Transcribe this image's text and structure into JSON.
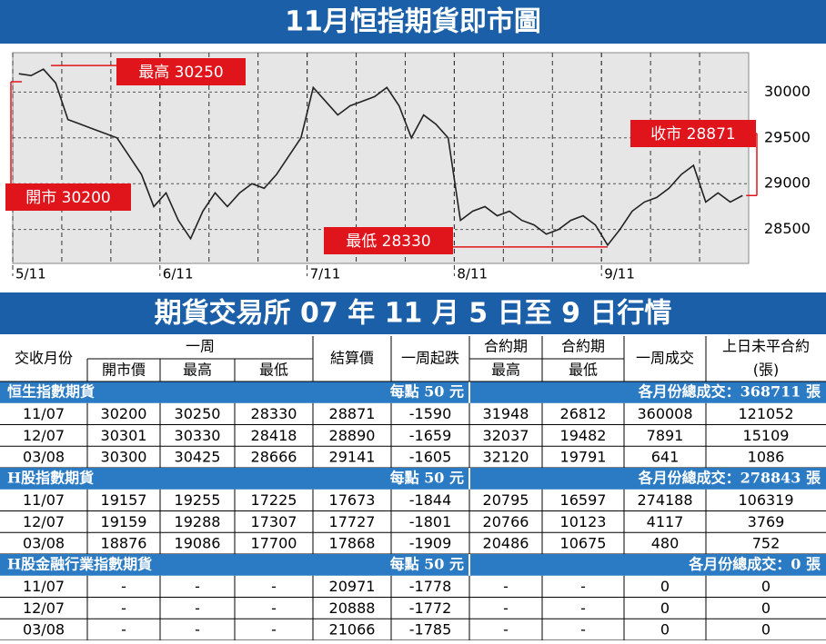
{
  "chart_data": {
    "type": "line",
    "title": "11月恒指期貨即市圖",
    "categories": [
      "5/11",
      null,
      null,
      null,
      null,
      null,
      null,
      null,
      null,
      null,
      null,
      null,
      "6/11",
      null,
      null,
      null,
      null,
      null,
      null,
      null,
      null,
      null,
      null,
      null,
      "7/11",
      null,
      null,
      null,
      null,
      null,
      null,
      null,
      null,
      null,
      null,
      null,
      "8/11",
      null,
      null,
      null,
      null,
      null,
      null,
      null,
      null,
      null,
      null,
      null,
      "9/11",
      null,
      null,
      null,
      null,
      null,
      null,
      null,
      null,
      null,
      null,
      null
    ],
    "values": [
      30200,
      30180,
      30250,
      30100,
      29700,
      29650,
      29600,
      29550,
      29500,
      29300,
      29100,
      28750,
      28900,
      28600,
      28400,
      28700,
      28900,
      28750,
      28900,
      29000,
      28950,
      29100,
      29300,
      29500,
      30050,
      29900,
      29750,
      29850,
      29900,
      29950,
      30050,
      29850,
      29500,
      29750,
      29650,
      29500,
      28600,
      28700,
      28750,
      28650,
      28700,
      28600,
      28550,
      28450,
      28500,
      28600,
      28650,
      28550,
      28330,
      28500,
      28700,
      28800,
      28850,
      28950,
      29100,
      29200,
      28800,
      28900,
      28800,
      28871
    ],
    "color": "#222222",
    "ylim": [
      28130,
      30430
    ],
    "yticks": [
      28500,
      29000,
      29500,
      30000
    ],
    "grid": true,
    "annotations": [
      "最高 30250",
      "開市 30200",
      "最低 28330",
      "收市 28871"
    ]
  },
  "table": {
    "title": "期貨交易所 07 年 11 月 5 日至 9 日行情",
    "header": {
      "month": "交收月份",
      "week": "一周",
      "open": "開市價",
      "high": "最高",
      "low": "最低",
      "settle": "結算價",
      "change": "一周起跌",
      "contract": "合約期",
      "chigh": "最高",
      "contract2": "合約期",
      "clow": "最低",
      "volume": "一周成交",
      "oi": "上日未平合約",
      "oi_unit": "(張)"
    },
    "sections": [
      {
        "name": "恒生指數期貨",
        "point": "每點 50 元",
        "total": "各月份總成交：368711 張",
        "rows": [
          [
            "11/07",
            "30200",
            "30250",
            "28330",
            "28871",
            "-1590",
            "31948",
            "26812",
            "360008",
            "121052"
          ],
          [
            "12/07",
            "30301",
            "30330",
            "28418",
            "28890",
            "-1659",
            "32037",
            "19482",
            "7891",
            "15109"
          ],
          [
            "03/08",
            "30300",
            "30425",
            "28666",
            "29141",
            "-1605",
            "32120",
            "19791",
            "641",
            "1086"
          ]
        ]
      },
      {
        "name": "H股指數期貨",
        "point": "每點 50 元",
        "total": "各月份總成交：278843 張",
        "rows": [
          [
            "11/07",
            "19157",
            "19255",
            "17225",
            "17673",
            "-1844",
            "20795",
            "16597",
            "274188",
            "106319"
          ],
          [
            "12/07",
            "19159",
            "19288",
            "17307",
            "17727",
            "-1801",
            "20766",
            "10123",
            "4117",
            "3769"
          ],
          [
            "03/08",
            "18876",
            "19086",
            "17700",
            "17868",
            "-1909",
            "20486",
            "10675",
            "480",
            "752"
          ]
        ]
      },
      {
        "name": "H股金融行業指數期貨",
        "point": "每點 50 元",
        "total": "各月份總成交：0 張",
        "rows": [
          [
            "11/07",
            "-",
            "-",
            "-",
            "20971",
            "-1778",
            "-",
            "-",
            "0",
            "0"
          ],
          [
            "12/07",
            "-",
            "-",
            "-",
            "20888",
            "-1772",
            "-",
            "-",
            "0",
            "0"
          ],
          [
            "03/08",
            "-",
            "-",
            "-",
            "21066",
            "-1785",
            "-",
            "-",
            "0",
            "0"
          ]
        ]
      }
    ]
  }
}
